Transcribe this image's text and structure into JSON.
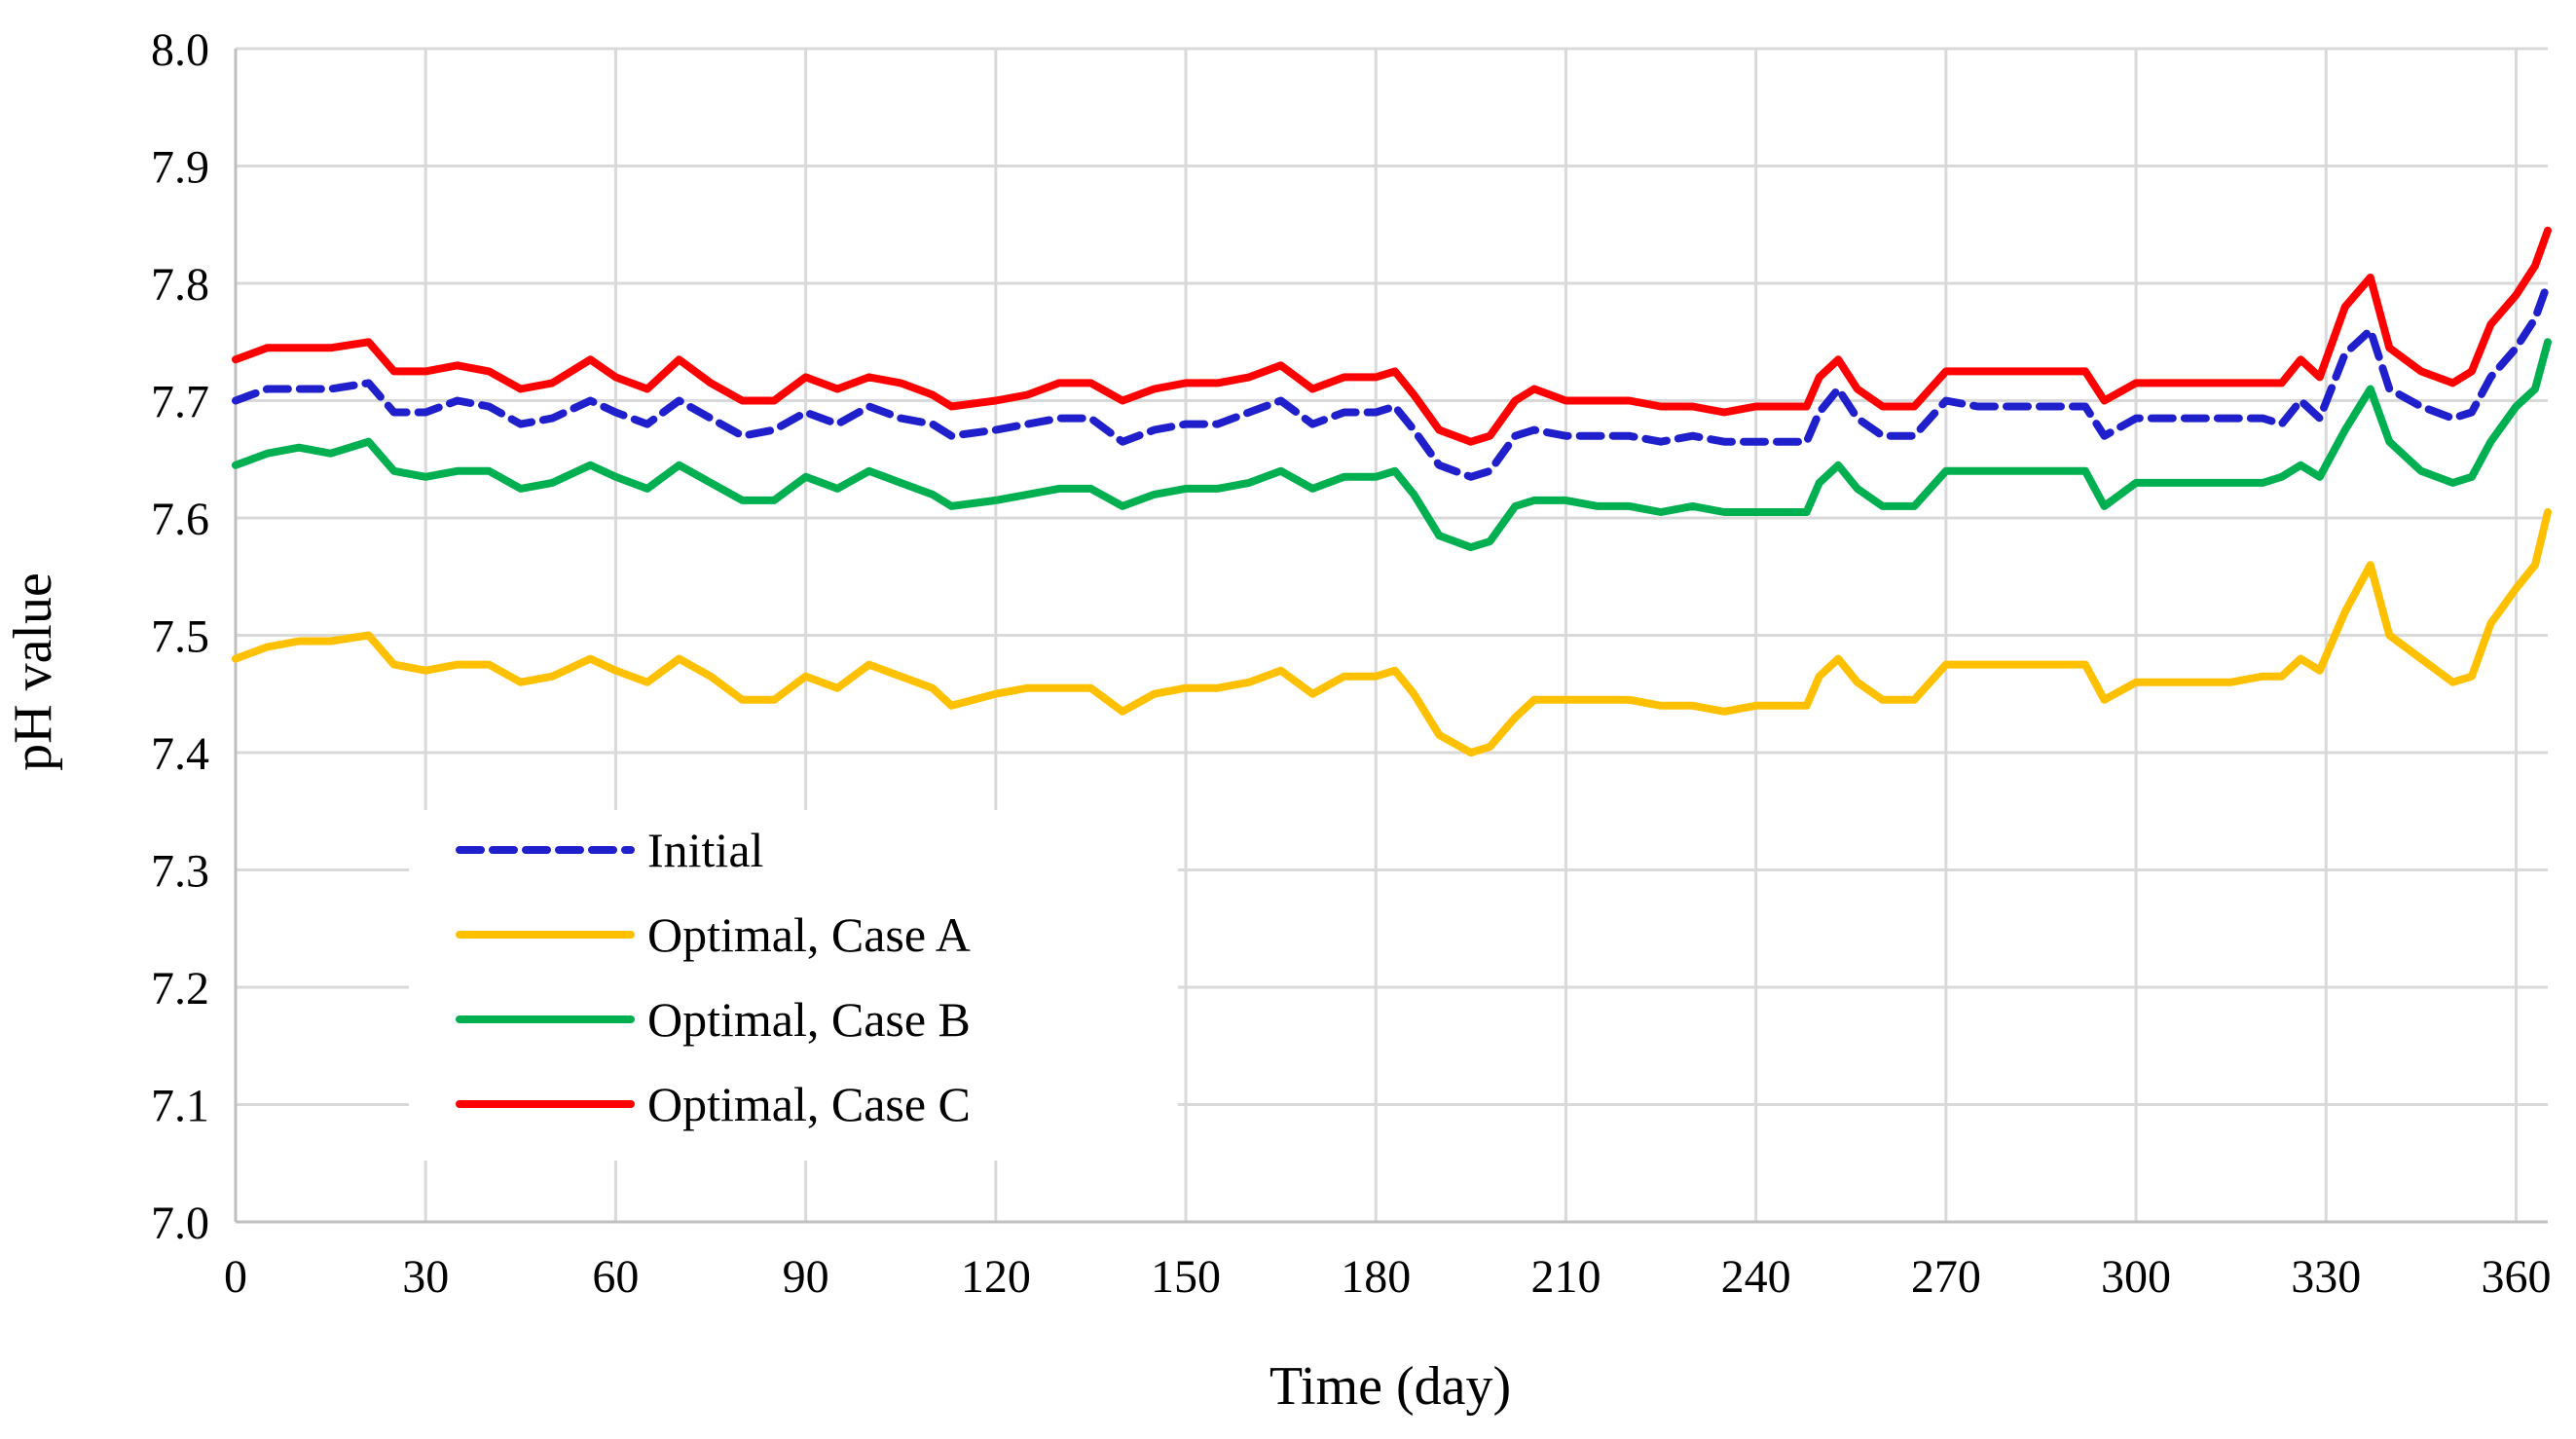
{
  "chart_data": {
    "type": "line",
    "title": "",
    "xlabel": "Time (day)",
    "ylabel": "pH value",
    "xlim": [
      0,
      365
    ],
    "ylim": [
      7.0,
      8.0
    ],
    "x_ticks": [
      0,
      30,
      60,
      90,
      120,
      150,
      180,
      210,
      240,
      270,
      300,
      330,
      360
    ],
    "y_ticks": [
      "7.0",
      "7.1",
      "7.2",
      "7.3",
      "7.4",
      "7.5",
      "7.6",
      "7.7",
      "7.8",
      "7.9",
      "8.0"
    ],
    "grid": true,
    "legend_position": "lower-left",
    "x": [
      0,
      5,
      10,
      15,
      21,
      25,
      30,
      35,
      40,
      45,
      50,
      56,
      60,
      65,
      70,
      75,
      80,
      85,
      90,
      95,
      100,
      105,
      110,
      113,
      120,
      125,
      130,
      135,
      140,
      145,
      150,
      155,
      160,
      165,
      170,
      175,
      180,
      183,
      186,
      190,
      195,
      198,
      202,
      205,
      210,
      215,
      220,
      225,
      230,
      235,
      240,
      245,
      248,
      250,
      253,
      256,
      260,
      265,
      270,
      275,
      280,
      285,
      290,
      292,
      295,
      300,
      305,
      310,
      315,
      320,
      323,
      326,
      329,
      333,
      337,
      340,
      345,
      350,
      353,
      356,
      360,
      363,
      365
    ],
    "series": [
      {
        "name": "Initial",
        "color": "#1f1fcc",
        "dash": "dashed",
        "values": [
          7.7,
          7.71,
          7.71,
          7.71,
          7.715,
          7.69,
          7.69,
          7.7,
          7.695,
          7.68,
          7.685,
          7.7,
          7.69,
          7.68,
          7.7,
          7.685,
          7.67,
          7.675,
          7.69,
          7.68,
          7.695,
          7.685,
          7.68,
          7.67,
          7.675,
          7.68,
          7.685,
          7.685,
          7.665,
          7.675,
          7.68,
          7.68,
          7.69,
          7.7,
          7.68,
          7.69,
          7.69,
          7.695,
          7.675,
          7.645,
          7.635,
          7.64,
          7.67,
          7.675,
          7.67,
          7.67,
          7.67,
          7.665,
          7.67,
          7.665,
          7.665,
          7.665,
          7.665,
          7.69,
          7.71,
          7.685,
          7.67,
          7.67,
          7.7,
          7.695,
          7.695,
          7.695,
          7.695,
          7.695,
          7.67,
          7.685,
          7.685,
          7.685,
          7.685,
          7.685,
          7.68,
          7.7,
          7.685,
          7.74,
          7.76,
          7.71,
          7.695,
          7.685,
          7.69,
          7.72,
          7.745,
          7.77,
          7.8
        ]
      },
      {
        "name": "Optimal, Case A",
        "color": "#ffc000",
        "dash": "solid",
        "values": [
          7.48,
          7.49,
          7.495,
          7.495,
          7.5,
          7.475,
          7.47,
          7.475,
          7.475,
          7.46,
          7.465,
          7.48,
          7.47,
          7.46,
          7.48,
          7.465,
          7.445,
          7.445,
          7.465,
          7.455,
          7.475,
          7.465,
          7.455,
          7.44,
          7.45,
          7.455,
          7.455,
          7.455,
          7.435,
          7.45,
          7.455,
          7.455,
          7.46,
          7.47,
          7.45,
          7.465,
          7.465,
          7.47,
          7.45,
          7.415,
          7.4,
          7.405,
          7.43,
          7.445,
          7.445,
          7.445,
          7.445,
          7.44,
          7.44,
          7.435,
          7.44,
          7.44,
          7.44,
          7.465,
          7.48,
          7.46,
          7.445,
          7.445,
          7.475,
          7.475,
          7.475,
          7.475,
          7.475,
          7.475,
          7.445,
          7.46,
          7.46,
          7.46,
          7.46,
          7.465,
          7.465,
          7.48,
          7.47,
          7.52,
          7.56,
          7.5,
          7.48,
          7.46,
          7.465,
          7.51,
          7.54,
          7.56,
          7.605
        ]
      },
      {
        "name": "Optimal, Case B",
        "color": "#00b050",
        "dash": "solid",
        "values": [
          7.645,
          7.655,
          7.66,
          7.655,
          7.665,
          7.64,
          7.635,
          7.64,
          7.64,
          7.625,
          7.63,
          7.645,
          7.635,
          7.625,
          7.645,
          7.63,
          7.615,
          7.615,
          7.635,
          7.625,
          7.64,
          7.63,
          7.62,
          7.61,
          7.615,
          7.62,
          7.625,
          7.625,
          7.61,
          7.62,
          7.625,
          7.625,
          7.63,
          7.64,
          7.625,
          7.635,
          7.635,
          7.64,
          7.62,
          7.585,
          7.575,
          7.58,
          7.61,
          7.615,
          7.615,
          7.61,
          7.61,
          7.605,
          7.61,
          7.605,
          7.605,
          7.605,
          7.605,
          7.63,
          7.645,
          7.625,
          7.61,
          7.61,
          7.64,
          7.64,
          7.64,
          7.64,
          7.64,
          7.64,
          7.61,
          7.63,
          7.63,
          7.63,
          7.63,
          7.63,
          7.635,
          7.645,
          7.635,
          7.675,
          7.71,
          7.665,
          7.64,
          7.63,
          7.635,
          7.665,
          7.695,
          7.71,
          7.75
        ]
      },
      {
        "name": "Optimal, Case C",
        "color": "#ff0000",
        "dash": "solid",
        "values": [
          7.735,
          7.745,
          7.745,
          7.745,
          7.75,
          7.725,
          7.725,
          7.73,
          7.725,
          7.71,
          7.715,
          7.735,
          7.72,
          7.71,
          7.735,
          7.715,
          7.7,
          7.7,
          7.72,
          7.71,
          7.72,
          7.715,
          7.705,
          7.695,
          7.7,
          7.705,
          7.715,
          7.715,
          7.7,
          7.71,
          7.715,
          7.715,
          7.72,
          7.73,
          7.71,
          7.72,
          7.72,
          7.725,
          7.705,
          7.675,
          7.665,
          7.67,
          7.7,
          7.71,
          7.7,
          7.7,
          7.7,
          7.695,
          7.695,
          7.69,
          7.695,
          7.695,
          7.695,
          7.72,
          7.735,
          7.71,
          7.695,
          7.695,
          7.725,
          7.725,
          7.725,
          7.725,
          7.725,
          7.725,
          7.7,
          7.715,
          7.715,
          7.715,
          7.715,
          7.715,
          7.715,
          7.735,
          7.72,
          7.78,
          7.805,
          7.745,
          7.725,
          7.715,
          7.725,
          7.765,
          7.79,
          7.815,
          7.845
        ]
      }
    ]
  }
}
